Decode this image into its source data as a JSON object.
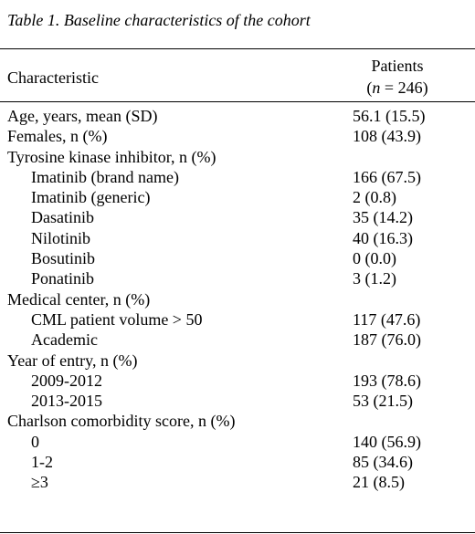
{
  "caption": "Table 1. Baseline characteristics of the cohort",
  "header": {
    "characteristic": "Characteristic",
    "patients_line1": "Patients",
    "patients_line2_open": "(",
    "patients_n": "n",
    "patients_line2_rest": " = 246)"
  },
  "rows": [
    {
      "label": "Age, years, mean (SD)",
      "value": "56.1 (15.5)"
    },
    {
      "label": "Females, n (%)",
      "value": "108 (43.9)"
    },
    {
      "label": "Tyrosine kinase inhibitor, n (%)",
      "value": ""
    },
    {
      "label": "Imatinib (brand name)",
      "value": "166 (67.5)"
    },
    {
      "label": "Imatinib (generic)",
      "value": "2 (0.8)"
    },
    {
      "label": "Dasatinib",
      "value": "35 (14.2)"
    },
    {
      "label": "Nilotinib",
      "value": "40 (16.3)"
    },
    {
      "label": "Bosutinib",
      "value": "0 (0.0)"
    },
    {
      "label": "Ponatinib",
      "value": "3 (1.2)"
    },
    {
      "label": "Medical center, n (%)",
      "value": ""
    },
    {
      "label": "CML patient volume > 50",
      "value": "117 (47.6)"
    },
    {
      "label": "Academic",
      "value": "187 (76.0)"
    },
    {
      "label": "Year of entry, n (%)",
      "value": ""
    },
    {
      "label": "2009-2012",
      "value": "193 (78.6)"
    },
    {
      "label": "2013-2015",
      "value": "53 (21.5)"
    },
    {
      "label": "Charlson comorbidity score, n (%)",
      "value": ""
    },
    {
      "label": "0",
      "value": "140 (56.9)"
    },
    {
      "label": "1-2",
      "value": "85 (34.6)"
    },
    {
      "label": "≥3",
      "value": "21 (8.5)"
    }
  ]
}
